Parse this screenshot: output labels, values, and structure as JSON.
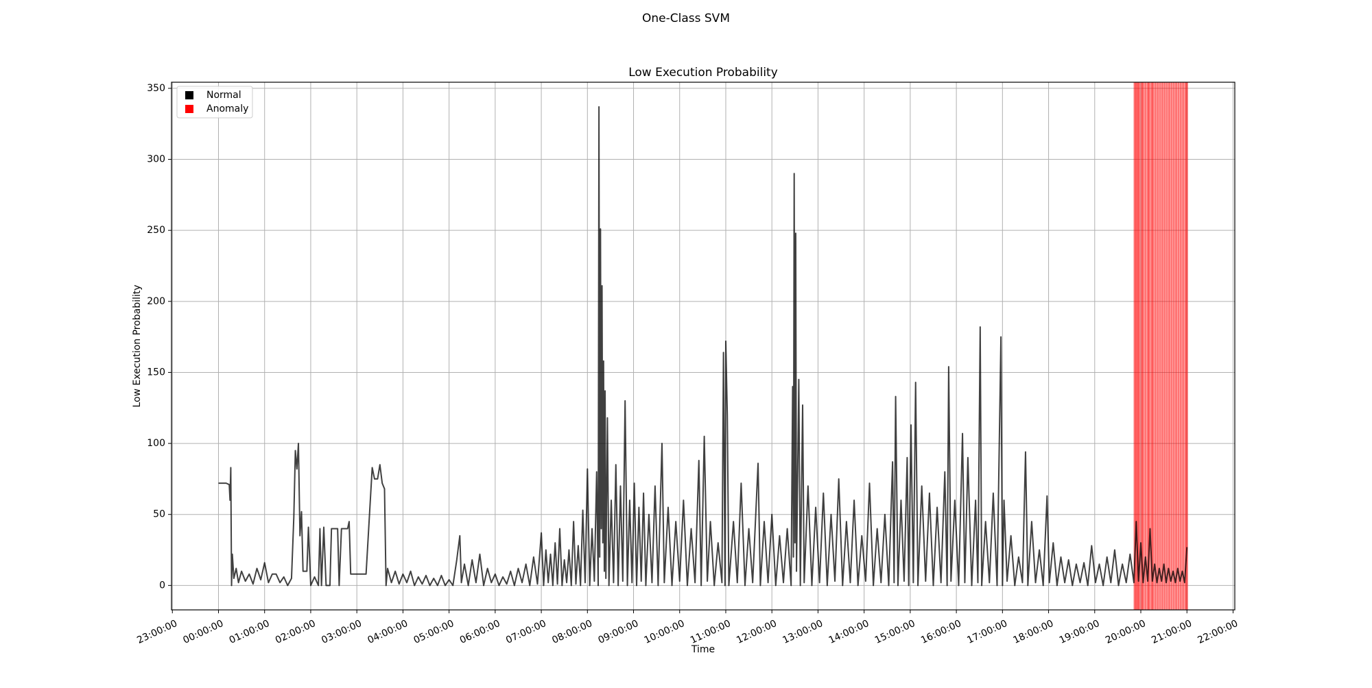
{
  "chart_data": {
    "type": "line",
    "suptitle": "One-Class SVM",
    "title": "Low Execution Probability",
    "xlabel": "Time",
    "ylabel": "Low Execution Probability",
    "xlim": [
      "22:58:52",
      "22:02:16"
    ],
    "xticks": [
      "23:00:00",
      "00:00:00",
      "01:00:00",
      "02:00:00",
      "03:00:00",
      "04:00:00",
      "05:00:00",
      "06:00:00",
      "07:00:00",
      "08:00:00",
      "09:00:00",
      "10:00:00",
      "11:00:00",
      "12:00:00",
      "13:00:00",
      "14:00:00",
      "15:00:00",
      "16:00:00",
      "17:00:00",
      "18:00:00",
      "19:00:00",
      "20:00:00",
      "21:00:00",
      "22:00:00"
    ],
    "ylim": [
      -17.2,
      354.3
    ],
    "yticks": [
      0,
      50,
      100,
      150,
      200,
      250,
      300,
      350
    ],
    "grid": true,
    "legend": "upper left",
    "series": [
      {
        "name": "Normal",
        "color": "#000000",
        "x": [
          "00:00:00",
          "00:10:00",
          "00:14:00",
          "00:15:00",
          "00:16:00",
          "00:17:00",
          "00:18:00",
          "00:20:00",
          "00:23:00",
          "00:26:00",
          "00:30:00",
          "00:35:00",
          "00:40:00",
          "00:45:00",
          "00:50:00",
          "00:55:00",
          "01:00:00",
          "01:05:00",
          "01:10:00",
          "01:15:00",
          "01:20:00",
          "01:25:00",
          "01:30:00",
          "01:35:00",
          "01:38:00",
          "01:40:00",
          "01:42:00",
          "01:44:00",
          "01:46:00",
          "01:48:00",
          "01:50:00",
          "01:55:00",
          "01:57:00",
          "02:00:00",
          "02:05:00",
          "02:10:00",
          "02:12:00",
          "02:14:00",
          "02:17:00",
          "02:20:00",
          "02:25:00",
          "02:27:00",
          "02:35:00",
          "02:37:00",
          "02:40:00",
          "02:48:00",
          "02:50:00",
          "02:52:00",
          "03:00:00",
          "03:12:00",
          "03:20:00",
          "03:23:00",
          "03:27:00",
          "03:30:00",
          "03:33:00",
          "03:36:00",
          "03:38:00",
          "03:40:00",
          "03:45:00",
          "03:50:00",
          "03:55:00",
          "04:00:00",
          "04:05:00",
          "04:10:00",
          "04:15:00",
          "04:20:00",
          "04:25:00",
          "04:30:00",
          "04:35:00",
          "04:40:00",
          "04:45:00",
          "04:50:00",
          "04:55:00",
          "05:00:00",
          "05:05:00",
          "05:10:00",
          "05:14:00",
          "05:16:00",
          "05:20:00",
          "05:25:00",
          "05:30:00",
          "05:35:00",
          "05:40:00",
          "05:45:00",
          "05:50:00",
          "05:55:00",
          "06:00:00",
          "06:05:00",
          "06:10:00",
          "06:15:00",
          "06:20:00",
          "06:25:00",
          "06:30:00",
          "06:35:00",
          "06:40:00",
          "06:45:00",
          "06:50:00",
          "06:55:00",
          "07:00:00",
          "07:03:00",
          "07:06:00",
          "07:09:00",
          "07:12:00",
          "07:15:00",
          "07:18:00",
          "07:21:00",
          "07:24:00",
          "07:27:00",
          "07:30:00",
          "07:33:00",
          "07:36:00",
          "07:39:00",
          "07:42:00",
          "07:45:00",
          "07:48:00",
          "07:51:00",
          "07:54:00",
          "07:57:00",
          "08:00:00",
          "08:03:00",
          "08:06:00",
          "08:09:00",
          "08:12:00",
          "08:14:00",
          "08:15:00",
          "08:16:00",
          "08:17:00",
          "08:18:00",
          "08:19:00",
          "08:20:00",
          "08:21:00",
          "08:22:00",
          "08:23:00",
          "08:24:00",
          "08:26:00",
          "08:28:00",
          "08:31:00",
          "08:34:00",
          "08:37:00",
          "08:40:00",
          "08:43:00",
          "08:46:00",
          "08:49:00",
          "08:52:00",
          "08:55:00",
          "08:58:00",
          "09:01:00",
          "09:04:00",
          "09:07:00",
          "09:10:00",
          "09:13:00",
          "09:16:00",
          "09:20:00",
          "09:24:00",
          "09:28:00",
          "09:32:00",
          "09:37:00",
          "09:40:00",
          "09:45:00",
          "09:50:00",
          "09:55:00",
          "10:00:00",
          "10:05:00",
          "10:10:00",
          "10:15:00",
          "10:20:00",
          "10:25:00",
          "10:28:00",
          "10:32:00",
          "10:36:00",
          "10:40:00",
          "10:45:00",
          "10:50:00",
          "10:55:00",
          "10:57:00",
          "10:59:00",
          "11:00:00",
          "11:02:00",
          "11:04:00",
          "11:10:00",
          "11:15:00",
          "11:20:00",
          "11:25:00",
          "11:30:00",
          "11:35:00",
          "11:42:00",
          "11:45:00",
          "11:50:00",
          "11:55:00",
          "12:00:00",
          "12:05:00",
          "12:10:00",
          "12:15:00",
          "12:20:00",
          "12:25:00",
          "12:27:00",
          "12:28:00",
          "12:29:00",
          "12:30:00",
          "12:31:00",
          "12:32:00",
          "12:35:00",
          "12:37:00",
          "12:40:00",
          "12:42:00",
          "12:47:00",
          "12:52:00",
          "12:57:00",
          "13:02:00",
          "13:07:00",
          "13:12:00",
          "13:17:00",
          "13:22:00",
          "13:27:00",
          "13:32:00",
          "13:37:00",
          "13:42:00",
          "13:47:00",
          "13:52:00",
          "13:57:00",
          "14:02:00",
          "14:07:00",
          "14:12:00",
          "14:17:00",
          "14:22:00",
          "14:27:00",
          "14:32:00",
          "14:37:00",
          "14:39:00",
          "14:41:00",
          "14:44:00",
          "14:48:00",
          "14:52:00",
          "14:56:00",
          "14:58:00",
          "15:01:00",
          "15:04:00",
          "15:07:00",
          "15:10:00",
          "15:15:00",
          "15:20:00",
          "15:25:00",
          "15:30:00",
          "15:35:00",
          "15:40:00",
          "15:45:00",
          "15:48:00",
          "15:50:00",
          "15:53:00",
          "15:58:00",
          "16:03:00",
          "16:08:00",
          "16:11:00",
          "16:15:00",
          "16:20:00",
          "16:25:00",
          "16:28:00",
          "16:31:00",
          "16:33:00",
          "16:38:00",
          "16:43:00",
          "16:48:00",
          "16:53:00",
          "16:58:00",
          "17:00:00",
          "17:02:00",
          "17:06:00",
          "17:11:00",
          "17:16:00",
          "17:21:00",
          "17:26:00",
          "17:30:00",
          "17:33:00",
          "17:38:00",
          "17:43:00",
          "17:48:00",
          "17:53:00",
          "17:58:00",
          "18:01:00",
          "18:06:00",
          "18:11:00",
          "18:16:00",
          "18:21:00",
          "18:26:00",
          "18:31:00",
          "18:36:00",
          "18:41:00",
          "18:46:00",
          "18:51:00",
          "18:56:00",
          "19:01:00",
          "19:06:00",
          "19:11:00",
          "19:16:00",
          "19:21:00",
          "19:26:00",
          "19:31:00",
          "19:36:00",
          "19:41:00",
          "19:46:00",
          "19:51:00",
          "19:54:00",
          "19:57:00",
          "20:00:00",
          "20:03:00",
          "20:06:00",
          "20:09:00",
          "20:12:00",
          "20:15:00",
          "20:18:00",
          "20:21:00",
          "20:24:00",
          "20:27:00",
          "20:30:00",
          "20:33:00",
          "20:36:00",
          "20:39:00",
          "20:42:00",
          "20:45:00",
          "20:48:00",
          "20:51:00",
          "20:54:00",
          "20:57:00",
          "21:00:00"
        ],
        "values": [
          72,
          72,
          71,
          60,
          83,
          0,
          22,
          5,
          12,
          2,
          10,
          3,
          8,
          1,
          12,
          4,
          16,
          2,
          8,
          8,
          2,
          6,
          0,
          5,
          48,
          95,
          82,
          100,
          35,
          52,
          10,
          10,
          41,
          0,
          6,
          0,
          40,
          0,
          41,
          0,
          0,
          40,
          40,
          0,
          40,
          40,
          45,
          8,
          8,
          8,
          83,
          75,
          75,
          85,
          72,
          68,
          0,
          12,
          2,
          10,
          1,
          8,
          2,
          10,
          0,
          6,
          1,
          7,
          0,
          5,
          0,
          7,
          0,
          4,
          0,
          18,
          35,
          2,
          15,
          0,
          18,
          2,
          22,
          0,
          12,
          2,
          8,
          0,
          6,
          1,
          10,
          0,
          12,
          2,
          15,
          0,
          20,
          1,
          37,
          0,
          25,
          2,
          22,
          0,
          30,
          1,
          40,
          0,
          18,
          2,
          25,
          0,
          45,
          1,
          28,
          0,
          53,
          2,
          82,
          0,
          40,
          3,
          80,
          0,
          337,
          20,
          251,
          40,
          211,
          30,
          158,
          10,
          137,
          5,
          118,
          0,
          60,
          2,
          85,
          0,
          70,
          3,
          130,
          0,
          60,
          2,
          72,
          0,
          55,
          3,
          65,
          0,
          50,
          2,
          70,
          0,
          100,
          2,
          55,
          0,
          45,
          3,
          60,
          0,
          40,
          2,
          88,
          0,
          105,
          3,
          45,
          0,
          30,
          2,
          164,
          0,
          172,
          120,
          0,
          45,
          2,
          72,
          0,
          40,
          2,
          86,
          0,
          45,
          2,
          50,
          0,
          35,
          2,
          40,
          0,
          140,
          20,
          290,
          30,
          248,
          10,
          145,
          0,
          127,
          2,
          70,
          0,
          55,
          2,
          65,
          0,
          50,
          3,
          75,
          0,
          45,
          2,
          60,
          0,
          35,
          3,
          72,
          0,
          40,
          2,
          50,
          0,
          87,
          2,
          133,
          0,
          60,
          3,
          90,
          0,
          113,
          2,
          143,
          0,
          70,
          3,
          65,
          0,
          55,
          2,
          80,
          0,
          154,
          3,
          60,
          0,
          107,
          2,
          90,
          0,
          60,
          2,
          182,
          0,
          45,
          2,
          65,
          0,
          175,
          0,
          60,
          3,
          35,
          0,
          20,
          2,
          94,
          0,
          45,
          2,
          25,
          0,
          63,
          2,
          30,
          0,
          20,
          2,
          18,
          0,
          15,
          2,
          16,
          0,
          28,
          2,
          15,
          0,
          20,
          2,
          25,
          0,
          15,
          2,
          22,
          2,
          45,
          3,
          30,
          2,
          20,
          3,
          40,
          3,
          15,
          2,
          12,
          3,
          15,
          2,
          12,
          3,
          10,
          2,
          12,
          3,
          10,
          2,
          27
        ]
      },
      {
        "name": "Anomaly",
        "color": "#ff0000",
        "x": [
          "19:52:00",
          "19:54:00",
          "19:56:00",
          "19:58:00",
          "20:01:00",
          "20:03:00",
          "20:06:00",
          "20:09:00",
          "20:11:00",
          "20:14:00",
          "20:16:00",
          "20:19:00",
          "20:22:00",
          "20:25:00",
          "20:28:00",
          "20:31:00",
          "20:34:00",
          "20:37:00",
          "20:40:00",
          "20:43:00",
          "20:46:00",
          "20:49:00",
          "20:52:00",
          "20:55:00",
          "20:58:00",
          "21:00:00"
        ]
      }
    ]
  }
}
